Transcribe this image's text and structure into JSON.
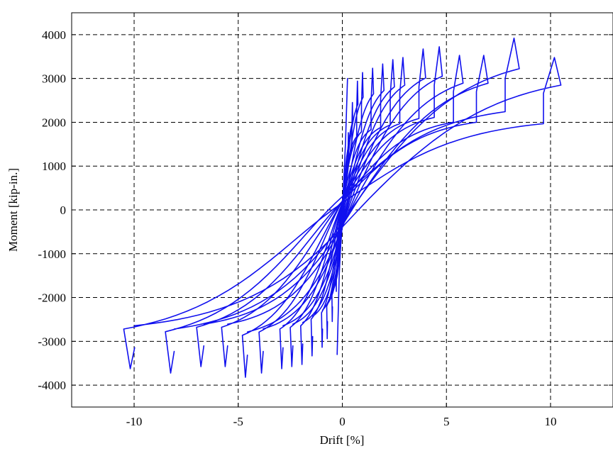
{
  "chart_data": {
    "type": "line",
    "title": "",
    "xlabel": "Drift [%]",
    "ylabel": "Moment [kip-in.]",
    "xlim": [
      -13,
      13
    ],
    "ylim": [
      -4500,
      4500
    ],
    "x_ticks": [
      -10,
      -5,
      0,
      5,
      10
    ],
    "y_ticks": [
      -4000,
      -3000,
      -2000,
      -1000,
      0,
      1000,
      2000,
      3000,
      4000
    ],
    "x_tick_labels": [
      "-10",
      "-5",
      "0",
      "5",
      "10"
    ],
    "y_tick_labels": [
      "-4000",
      "-3000",
      "-2000",
      "-1000",
      "0",
      "1000",
      "2000",
      "3000",
      "4000"
    ],
    "grid": true,
    "legend": "none",
    "colors": {
      "series": "#1010ee",
      "grid": "#000000",
      "axis": "#000000"
    },
    "series": [
      {
        "color": "#1010ee",
        "description_of_data": "cyclic hysteresis loops; each loop listed as drift amplitude [%], peak positive moment, peak negative moment",
        "loops": [
          {
            "amp": 0.3,
            "mpos": 1800,
            "mneg": -1900
          },
          {
            "amp": 0.5,
            "mpos": 2500,
            "mneg": -2600
          },
          {
            "amp": 0.75,
            "mpos": 3000,
            "mneg": -3000
          },
          {
            "amp": 1.0,
            "mpos": 3200,
            "mneg": -3200
          },
          {
            "amp": 1.5,
            "mpos": 3300,
            "mneg": -3400
          },
          {
            "amp": 2.0,
            "mpos": 3400,
            "mneg": -3600
          },
          {
            "amp": 2.5,
            "mpos": 3500,
            "mneg": -3650
          },
          {
            "amp": 3.0,
            "mpos": 3550,
            "mneg": -3700
          },
          {
            "amp": 4.0,
            "mpos": 3750,
            "mneg": -3800
          },
          {
            "amp": 4.8,
            "mpos": 3800,
            "mneg": -3900
          },
          {
            "amp": 5.8,
            "mpos": 3600,
            "mneg": -3650
          },
          {
            "amp": 7.0,
            "mpos": 3600,
            "mneg": -3650
          },
          {
            "amp": 8.5,
            "mpos": 4000,
            "mneg": -3800
          },
          {
            "amp": 10.5,
            "mpos": 3550,
            "mneg": -3700
          }
        ]
      }
    ]
  }
}
